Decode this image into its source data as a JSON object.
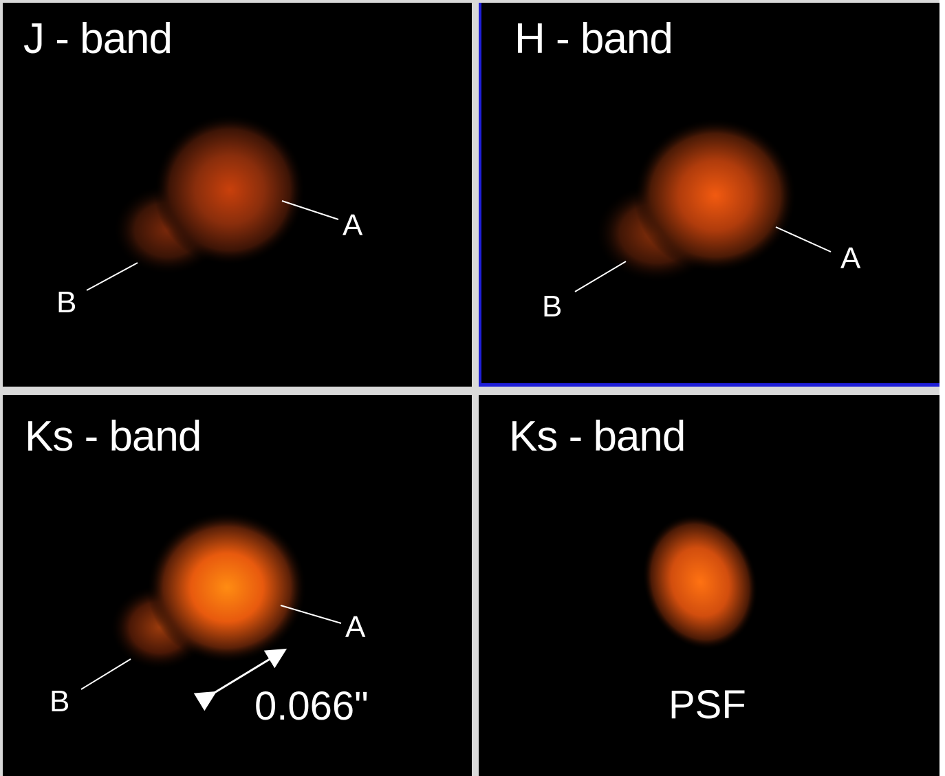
{
  "panels": {
    "j": {
      "title": "J - band",
      "label_a": "A",
      "label_b": "B"
    },
    "h": {
      "title": "H - band",
      "label_a": "A",
      "label_b": "B"
    },
    "k": {
      "title": "Ks - band",
      "label_a": "A",
      "label_b": "B",
      "separation": "0.066\""
    },
    "psf": {
      "title": "Ks - band",
      "caption": "PSF"
    }
  },
  "colors": {
    "background": "#000000",
    "divider": "#d9d9d9",
    "selected_border": "#1f1fd8",
    "source_glow": "#ff6a10"
  }
}
